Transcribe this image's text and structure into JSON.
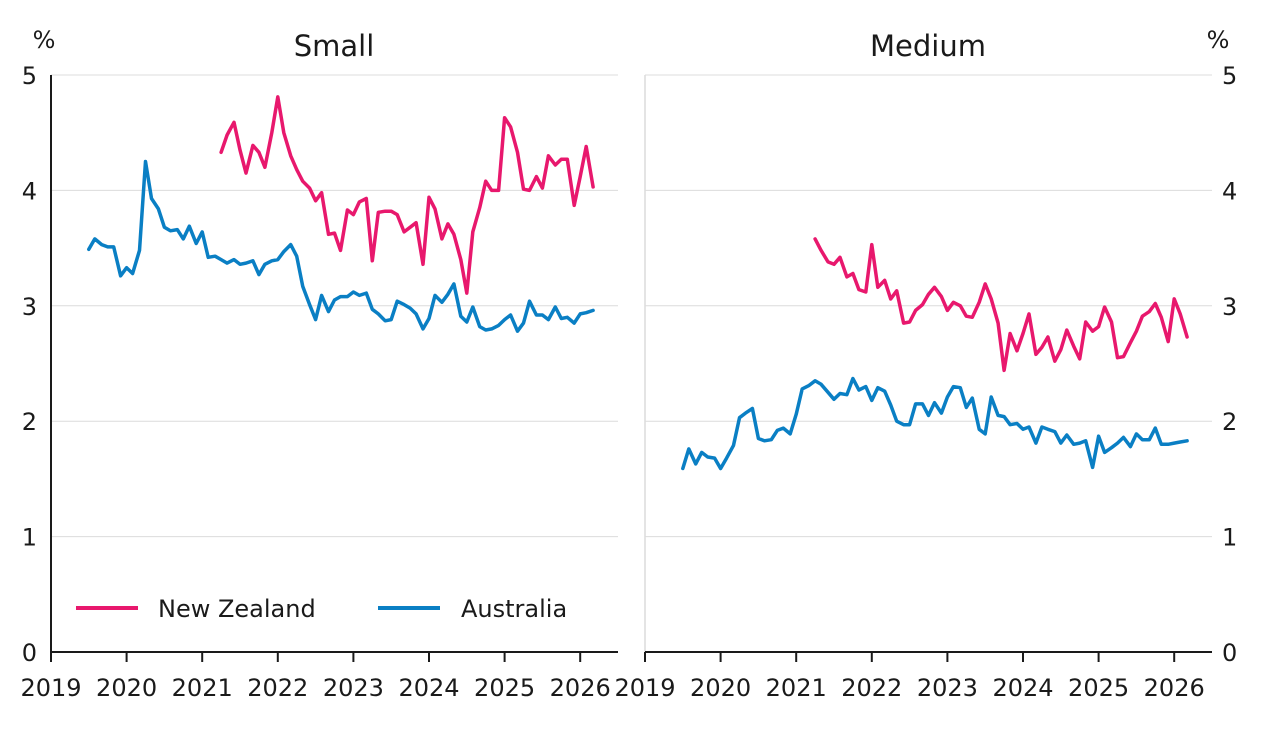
{
  "chart_data": [
    {
      "type": "line",
      "title": "Small",
      "ylabel": "%",
      "ylim": [
        0,
        5
      ],
      "xlim": [
        2019,
        2026.5
      ],
      "yticks": [
        "0",
        "1",
        "2",
        "3",
        "4",
        "5"
      ],
      "xticks": [
        "2019",
        "2020",
        "2021",
        "2022",
        "2023",
        "2024",
        "2025",
        "2026"
      ],
      "legend_position": "bottom-left",
      "series": [
        {
          "name": "New Zealand",
          "color": "#e8186d",
          "x": [
            2021.25,
            2021.33,
            2021.42,
            2021.5,
            2021.58,
            2021.67,
            2021.75,
            2021.83,
            2021.92,
            2022.0,
            2022.08,
            2022.17,
            2022.25,
            2022.33,
            2022.42,
            2022.5,
            2022.58,
            2022.67,
            2022.75,
            2022.83,
            2022.92,
            2023.0,
            2023.08,
            2023.17,
            2023.25,
            2023.33,
            2023.42,
            2023.5,
            2023.58,
            2023.67,
            2023.75,
            2023.83,
            2023.92,
            2024.0,
            2024.08,
            2024.17,
            2024.25,
            2024.33,
            2024.42,
            2024.5,
            2024.58,
            2024.67,
            2024.75,
            2024.83,
            2024.92,
            2025.0,
            2025.08,
            2025.17,
            2025.25,
            2025.33,
            2025.42,
            2025.5,
            2025.58,
            2025.67,
            2025.75,
            2025.83,
            2025.92,
            2026.0,
            2026.08,
            2026.17
          ],
          "y": [
            4.33,
            4.48,
            4.59,
            4.35,
            4.15,
            4.39,
            4.33,
            4.2,
            4.5,
            4.81,
            4.5,
            4.3,
            4.18,
            4.08,
            4.02,
            3.91,
            3.98,
            3.62,
            3.63,
            3.48,
            3.83,
            3.79,
            3.9,
            3.93,
            3.39,
            3.81,
            3.82,
            3.82,
            3.79,
            3.64,
            3.68,
            3.72,
            3.36,
            3.94,
            3.84,
            3.58,
            3.71,
            3.62,
            3.4,
            3.11,
            3.64,
            3.85,
            4.08,
            4.0,
            4.0,
            4.63,
            4.55,
            4.33,
            4.01,
            4.0,
            4.12,
            4.02,
            4.3,
            4.22,
            4.27,
            4.27,
            3.87,
            4.12,
            4.38,
            4.03
          ]
        },
        {
          "name": "Australia",
          "color": "#0a7fc4",
          "x": [
            2019.5,
            2019.58,
            2019.67,
            2019.75,
            2019.83,
            2019.92,
            2020.0,
            2020.08,
            2020.17,
            2020.25,
            2020.33,
            2020.42,
            2020.5,
            2020.58,
            2020.67,
            2020.75,
            2020.83,
            2020.92,
            2021.0,
            2021.08,
            2021.17,
            2021.25,
            2021.33,
            2021.42,
            2021.5,
            2021.58,
            2021.67,
            2021.75,
            2021.83,
            2021.92,
            2022.0,
            2022.08,
            2022.17,
            2022.25,
            2022.33,
            2022.42,
            2022.5,
            2022.58,
            2022.67,
            2022.75,
            2022.83,
            2022.92,
            2023.0,
            2023.08,
            2023.17,
            2023.25,
            2023.33,
            2023.42,
            2023.5,
            2023.58,
            2023.67,
            2023.75,
            2023.83,
            2023.92,
            2024.0,
            2024.08,
            2024.17,
            2024.25,
            2024.33,
            2024.42,
            2024.5,
            2024.58,
            2024.67,
            2024.75,
            2024.83,
            2024.92,
            2025.0,
            2025.08,
            2025.17,
            2025.25,
            2025.33,
            2025.42,
            2025.5,
            2025.58,
            2025.67,
            2025.75,
            2025.83,
            2025.92,
            2026.0,
            2026.08,
            2026.17
          ],
          "y": [
            3.49,
            3.58,
            3.53,
            3.51,
            3.51,
            3.26,
            3.33,
            3.28,
            3.48,
            4.25,
            3.93,
            3.84,
            3.68,
            3.65,
            3.66,
            3.58,
            3.69,
            3.54,
            3.64,
            3.42,
            3.43,
            3.4,
            3.37,
            3.4,
            3.36,
            3.37,
            3.39,
            3.27,
            3.36,
            3.39,
            3.4,
            3.47,
            3.53,
            3.43,
            3.17,
            3.01,
            2.88,
            3.09,
            2.95,
            3.05,
            3.08,
            3.08,
            3.12,
            3.09,
            3.11,
            2.97,
            2.93,
            2.87,
            2.88,
            3.04,
            3.01,
            2.98,
            2.93,
            2.8,
            2.89,
            3.09,
            3.03,
            3.1,
            3.19,
            2.91,
            2.86,
            2.99,
            2.82,
            2.79,
            2.8,
            2.83,
            2.88,
            2.92,
            2.78,
            2.85,
            3.04,
            2.92,
            2.92,
            2.88,
            2.99,
            2.89,
            2.9,
            2.85,
            2.93,
            2.94,
            2.96
          ]
        }
      ]
    },
    {
      "type": "line",
      "title": "Medium",
      "ylabel": "%",
      "ylim": [
        0,
        5
      ],
      "xlim": [
        2019,
        2026.5
      ],
      "yticks": [
        "0",
        "1",
        "2",
        "3",
        "4",
        "5"
      ],
      "xticks": [
        "2019",
        "2020",
        "2021",
        "2022",
        "2023",
        "2024",
        "2025",
        "2026"
      ],
      "series": [
        {
          "name": "New Zealand",
          "color": "#e8186d",
          "x": [
            2021.25,
            2021.33,
            2021.42,
            2021.5,
            2021.58,
            2021.67,
            2021.75,
            2021.83,
            2021.92,
            2022.0,
            2022.08,
            2022.17,
            2022.25,
            2022.33,
            2022.42,
            2022.5,
            2022.58,
            2022.67,
            2022.75,
            2022.83,
            2022.92,
            2023.0,
            2023.08,
            2023.17,
            2023.25,
            2023.33,
            2023.42,
            2023.5,
            2023.58,
            2023.67,
            2023.75,
            2023.83,
            2023.92,
            2024.0,
            2024.08,
            2024.17,
            2024.25,
            2024.33,
            2024.42,
            2024.5,
            2024.58,
            2024.67,
            2024.75,
            2024.83,
            2024.92,
            2025.0,
            2025.08,
            2025.17,
            2025.25,
            2025.33,
            2025.42,
            2025.5,
            2025.58,
            2025.67,
            2025.75,
            2025.83,
            2025.92,
            2026.0,
            2026.08,
            2026.17
          ],
          "y": [
            3.58,
            3.48,
            3.38,
            3.36,
            3.42,
            3.25,
            3.28,
            3.14,
            3.12,
            3.53,
            3.16,
            3.22,
            3.06,
            3.13,
            2.85,
            2.86,
            2.96,
            3.01,
            3.1,
            3.16,
            3.08,
            2.96,
            3.03,
            3.0,
            2.91,
            2.9,
            3.03,
            3.19,
            3.06,
            2.85,
            2.44,
            2.76,
            2.61,
            2.76,
            2.93,
            2.58,
            2.64,
            2.73,
            2.52,
            2.62,
            2.79,
            2.65,
            2.54,
            2.86,
            2.78,
            2.82,
            2.99,
            2.86,
            2.55,
            2.56,
            2.68,
            2.78,
            2.91,
            2.95,
            3.02,
            2.9,
            2.69,
            3.06,
            2.93,
            2.73
          ]
        },
        {
          "name": "Australia",
          "color": "#0a7fc4",
          "x": [
            2019.5,
            2019.58,
            2019.67,
            2019.75,
            2019.83,
            2019.92,
            2020.0,
            2020.08,
            2020.17,
            2020.25,
            2020.33,
            2020.42,
            2020.5,
            2020.58,
            2020.67,
            2020.75,
            2020.83,
            2020.92,
            2021.0,
            2021.08,
            2021.17,
            2021.25,
            2021.33,
            2021.42,
            2021.5,
            2021.58,
            2021.67,
            2021.75,
            2021.83,
            2021.92,
            2022.0,
            2022.08,
            2022.17,
            2022.25,
            2022.33,
            2022.42,
            2022.5,
            2022.58,
            2022.67,
            2022.75,
            2022.83,
            2022.92,
            2023.0,
            2023.08,
            2023.17,
            2023.25,
            2023.33,
            2023.42,
            2023.5,
            2023.58,
            2023.67,
            2023.75,
            2023.83,
            2023.92,
            2024.0,
            2024.08,
            2024.17,
            2024.25,
            2024.33,
            2024.42,
            2024.5,
            2024.58,
            2024.67,
            2024.75,
            2024.83,
            2024.92,
            2025.0,
            2025.08,
            2025.17,
            2025.25,
            2025.33,
            2025.42,
            2025.5,
            2025.58,
            2025.67,
            2025.75,
            2025.83,
            2025.92,
            2026.0,
            2026.08,
            2026.17
          ],
          "y": [
            1.59,
            1.76,
            1.63,
            1.73,
            1.69,
            1.68,
            1.59,
            1.68,
            1.79,
            2.03,
            2.07,
            2.11,
            1.85,
            1.83,
            1.84,
            1.92,
            1.94,
            1.89,
            2.06,
            2.28,
            2.31,
            2.35,
            2.32,
            2.25,
            2.19,
            2.24,
            2.23,
            2.37,
            2.27,
            2.3,
            2.18,
            2.29,
            2.26,
            2.14,
            2.0,
            1.97,
            1.97,
            2.15,
            2.15,
            2.05,
            2.16,
            2.07,
            2.21,
            2.3,
            2.29,
            2.12,
            2.2,
            1.93,
            1.89,
            2.21,
            2.05,
            2.04,
            1.97,
            1.98,
            1.93,
            1.95,
            1.81,
            1.95,
            1.93,
            1.91,
            1.81,
            1.88,
            1.8,
            1.81,
            1.83,
            1.6,
            1.87,
            1.73,
            1.77,
            1.81,
            1.86,
            1.78,
            1.89,
            1.84,
            1.84,
            1.94,
            1.8,
            1.8,
            1.81,
            1.82,
            1.83
          ]
        }
      ]
    }
  ]
}
